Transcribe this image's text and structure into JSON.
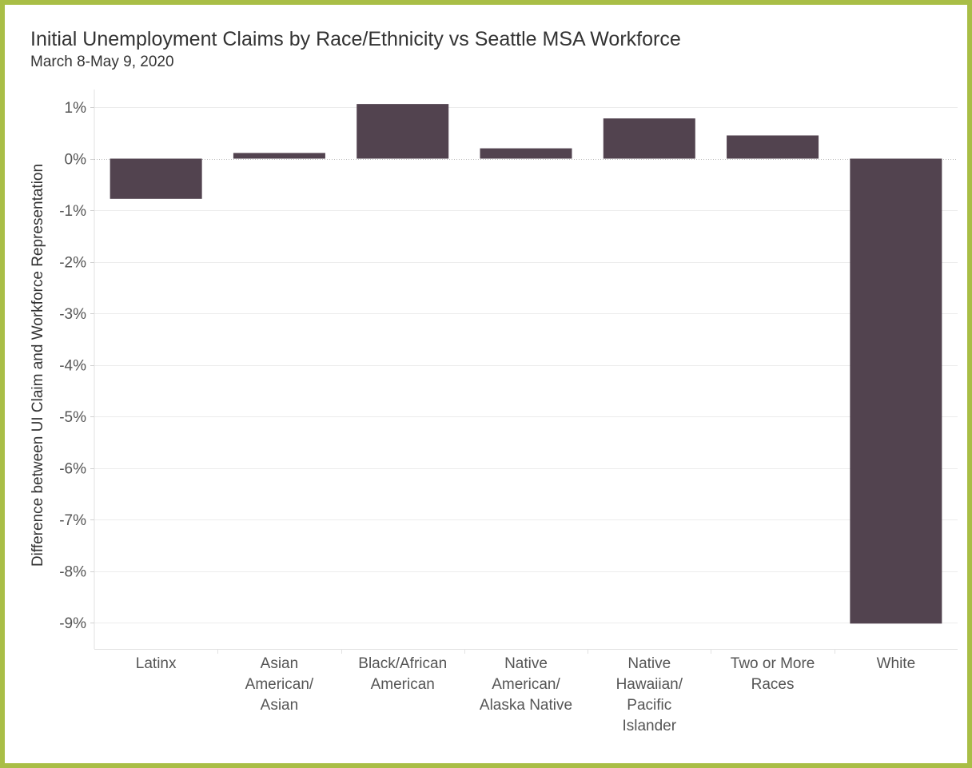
{
  "title": "Initial Unemployment Claims by Race/Ethnicity vs Seattle MSA Workforce",
  "subtitle": "March 8-May 9, 2020",
  "colors": {
    "bar": "#52434f",
    "frame": "#a9be46",
    "grid": "#ececec",
    "zero_line": "#bbbbbb"
  },
  "chart_data": {
    "type": "bar",
    "title": "Initial Unemployment Claims by Race/Ethnicity vs Seattle MSA Workforce",
    "subtitle": "March 8-May 9, 2020",
    "xlabel": "",
    "ylabel": "Difference between UI Claim and Workforce Representation",
    "ylim": [
      -9.5,
      1.5
    ],
    "yticks": [
      1,
      0,
      -1,
      -2,
      -3,
      -4,
      -5,
      -6,
      -7,
      -8,
      -9
    ],
    "ytick_labels": [
      "1%",
      "0%",
      "-1%",
      "-2%",
      "-3%",
      "-4%",
      "-5%",
      "-6%",
      "-7%",
      "-8%",
      "-9%"
    ],
    "categories": [
      "Latinx",
      "Asian American/ Asian",
      "Black/African American",
      "Native American/ Alaska Native",
      "Native Hawaiian/ Pacific Islander",
      "Two or More Races",
      "White"
    ],
    "category_label_lines": [
      [
        "Latinx"
      ],
      [
        "Asian",
        "American/",
        "Asian"
      ],
      [
        "Black/African",
        "American"
      ],
      [
        "Native",
        "American/",
        "Alaska Native"
      ],
      [
        "Native",
        "Hawaiian/",
        "Pacific",
        "Islander"
      ],
      [
        "Two or More",
        "Races"
      ],
      [
        "White"
      ]
    ],
    "values": [
      -0.78,
      0.11,
      1.06,
      0.2,
      0.78,
      0.45,
      -9.02
    ],
    "unit": "%",
    "grid": true,
    "legend": "none"
  }
}
